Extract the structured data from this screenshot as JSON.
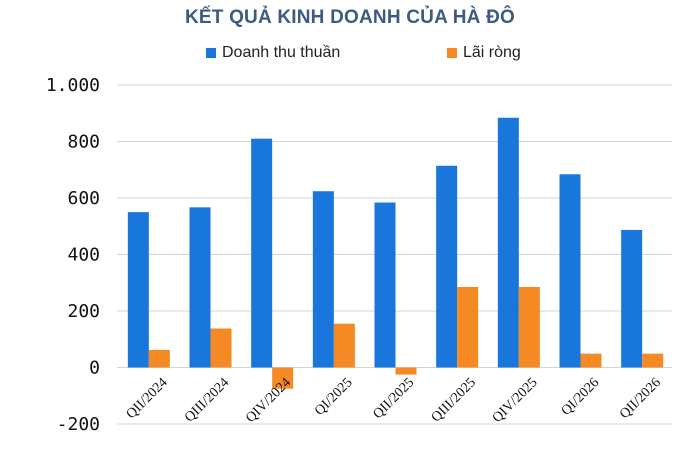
{
  "chart_data": {
    "type": "bar",
    "title": "KẾT QUẢ KINH DOANH CỦA HÀ ĐÔ",
    "categories": [
      "QII/2024",
      "QIII/2024",
      "QIV/2024",
      "QI/2025",
      "QII/2025",
      "QIII/2025",
      "QIV/2025",
      "QI/2026",
      "QII/2026"
    ],
    "series": [
      {
        "name": "Doanh thu thuần",
        "color": "#1976db",
        "values": [
          550,
          567,
          810,
          624,
          584,
          714,
          884,
          684,
          487
        ]
      },
      {
        "name": "Lãi ròng",
        "color": "#f58a24",
        "values": [
          62,
          138,
          -75,
          155,
          -25,
          285,
          285,
          49,
          49
        ]
      }
    ],
    "ylim": [
      -200,
      1000
    ],
    "yticks": [
      -200,
      0,
      200,
      400,
      600,
      800,
      1000
    ],
    "ytick_labels": [
      "-200",
      "0",
      "200",
      "400",
      "600",
      "800",
      "1.000"
    ],
    "grid": true,
    "legend": "top-center",
    "xlabel": "",
    "ylabel": ""
  }
}
